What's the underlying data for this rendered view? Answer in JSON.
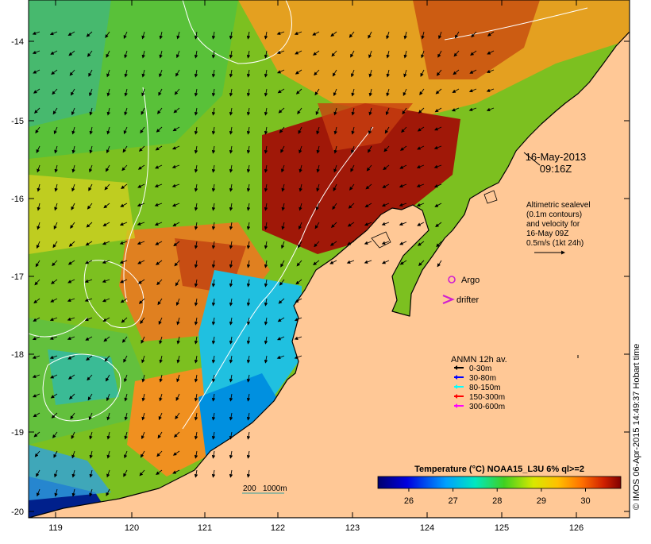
{
  "map": {
    "x_ticks": [
      "119",
      "120",
      "121",
      "122",
      "123",
      "124",
      "125",
      "126"
    ],
    "y_ticks": [
      "-14",
      "-15",
      "-16",
      "-17",
      "-18",
      "-19",
      "-20"
    ],
    "date": "16-May-2013",
    "time": "09:16Z",
    "altimetry_lines": [
      "Altimetric sealevel",
      "(0.1m contours)",
      "and velocity for",
      "16-May 09Z",
      "0.5m/s (1kt 24h)"
    ],
    "argo_label": "Argo",
    "drifter_label": "drifter",
    "anmn": {
      "title": "ANMN 12h av.",
      "items": [
        {
          "label": "0-30m",
          "color": "#000000"
        },
        {
          "label": "30-80m",
          "color": "#0000ff"
        },
        {
          "label": "80-150m",
          "color": "#00ffff"
        },
        {
          "label": "150-300m",
          "color": "#ff0000"
        },
        {
          "label": "300-600m",
          "color": "#ff00ff"
        }
      ]
    },
    "depth_labels": [
      "200",
      "1000m"
    ],
    "colorbar": {
      "title": "Temperature (°C) NOAA15_L3U 6% ql>=2",
      "ticks": [
        "26",
        "27",
        "28",
        "29",
        "30"
      ],
      "range": [
        25.3,
        30.8
      ]
    },
    "credit": "© IMOS 06-Apr-2015 14:49:37 Hobart time",
    "colors": {
      "land": "#ffc896",
      "coast": "#000000",
      "contour": "#ffffff"
    }
  }
}
